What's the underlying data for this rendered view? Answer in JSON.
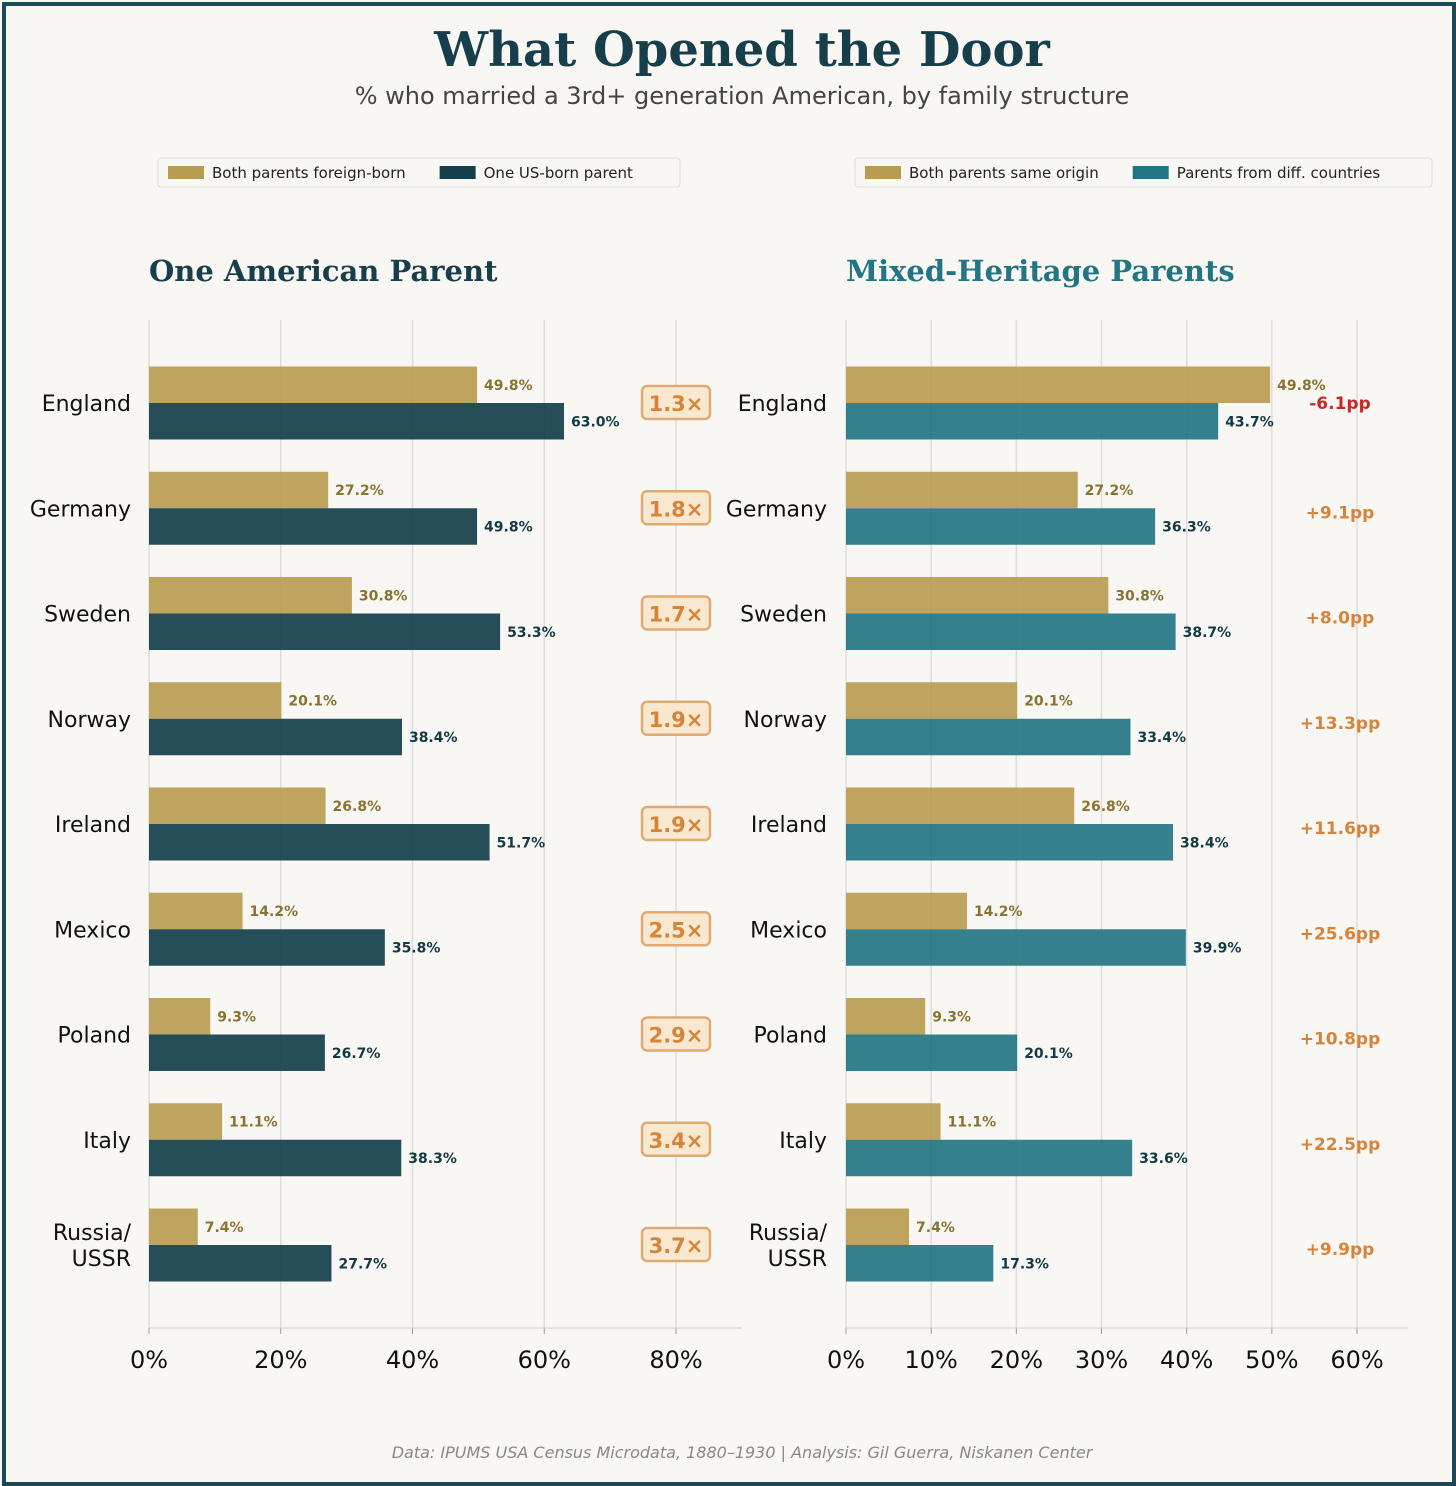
{
  "title": "What Opened the Door",
  "subtitle": "% who married a 3rd+ generation American, by family structure",
  "footer": "Data: IPUMS USA Census Microdata, 1880–1930  |  Analysis: Gil Guerra, Niskanen Center",
  "colors": {
    "gold": "#b89c52",
    "dark": "#143f4b",
    "teal": "#237583",
    "gold_text": "#8a7230",
    "dark_text": "#123a46",
    "orange": "#d7843a",
    "red": "#c8282a",
    "title": "#173f4b"
  },
  "chart_data": [
    {
      "type": "bar",
      "orientation": "horizontal",
      "title": "One American Parent",
      "categories": [
        "England",
        "Germany",
        "Sweden",
        "Norway",
        "Ireland",
        "Mexico",
        "Poland",
        "Italy",
        "Russia/\nUSSR"
      ],
      "series": [
        {
          "name": "Both parents foreign-born",
          "values": [
            49.8,
            27.2,
            30.8,
            20.1,
            26.8,
            14.2,
            9.3,
            11.1,
            7.4
          ]
        },
        {
          "name": "One US-born parent",
          "values": [
            63.0,
            49.8,
            53.3,
            38.4,
            51.7,
            35.8,
            26.7,
            38.3,
            27.7
          ]
        }
      ],
      "annotations": [
        "1.3×",
        "1.8×",
        "1.7×",
        "1.9×",
        "1.9×",
        "2.5×",
        "2.9×",
        "3.4×",
        "3.7×"
      ],
      "xticks": [
        "0%",
        "20%",
        "40%",
        "60%",
        "80%"
      ],
      "xtick_values": [
        0,
        20,
        40,
        60,
        80
      ],
      "xlim": [
        0,
        90
      ],
      "grid": true,
      "legend": "top"
    },
    {
      "type": "bar",
      "orientation": "horizontal",
      "title": "Mixed-Heritage Parents",
      "categories": [
        "England",
        "Germany",
        "Sweden",
        "Norway",
        "Ireland",
        "Mexico",
        "Poland",
        "Italy",
        "Russia/\nUSSR"
      ],
      "series": [
        {
          "name": "Both parents same origin",
          "values": [
            49.8,
            27.2,
            30.8,
            20.1,
            26.8,
            14.2,
            9.3,
            11.1,
            7.4
          ]
        },
        {
          "name": "Parents from diff. countries",
          "values": [
            43.7,
            36.3,
            38.7,
            33.4,
            38.4,
            39.9,
            20.1,
            33.6,
            17.3
          ]
        }
      ],
      "annotations": [
        "-6.1pp",
        "+9.1pp",
        "+8.0pp",
        "+13.3pp",
        "+11.6pp",
        "+25.6pp",
        "+10.8pp",
        "+22.5pp",
        "+9.9pp"
      ],
      "xticks": [
        "0%",
        "10%",
        "20%",
        "30%",
        "40%",
        "50%",
        "60%"
      ],
      "xtick_values": [
        0,
        10,
        20,
        30,
        40,
        50,
        60
      ],
      "xlim": [
        0,
        66
      ],
      "grid": true,
      "legend": "top"
    }
  ]
}
